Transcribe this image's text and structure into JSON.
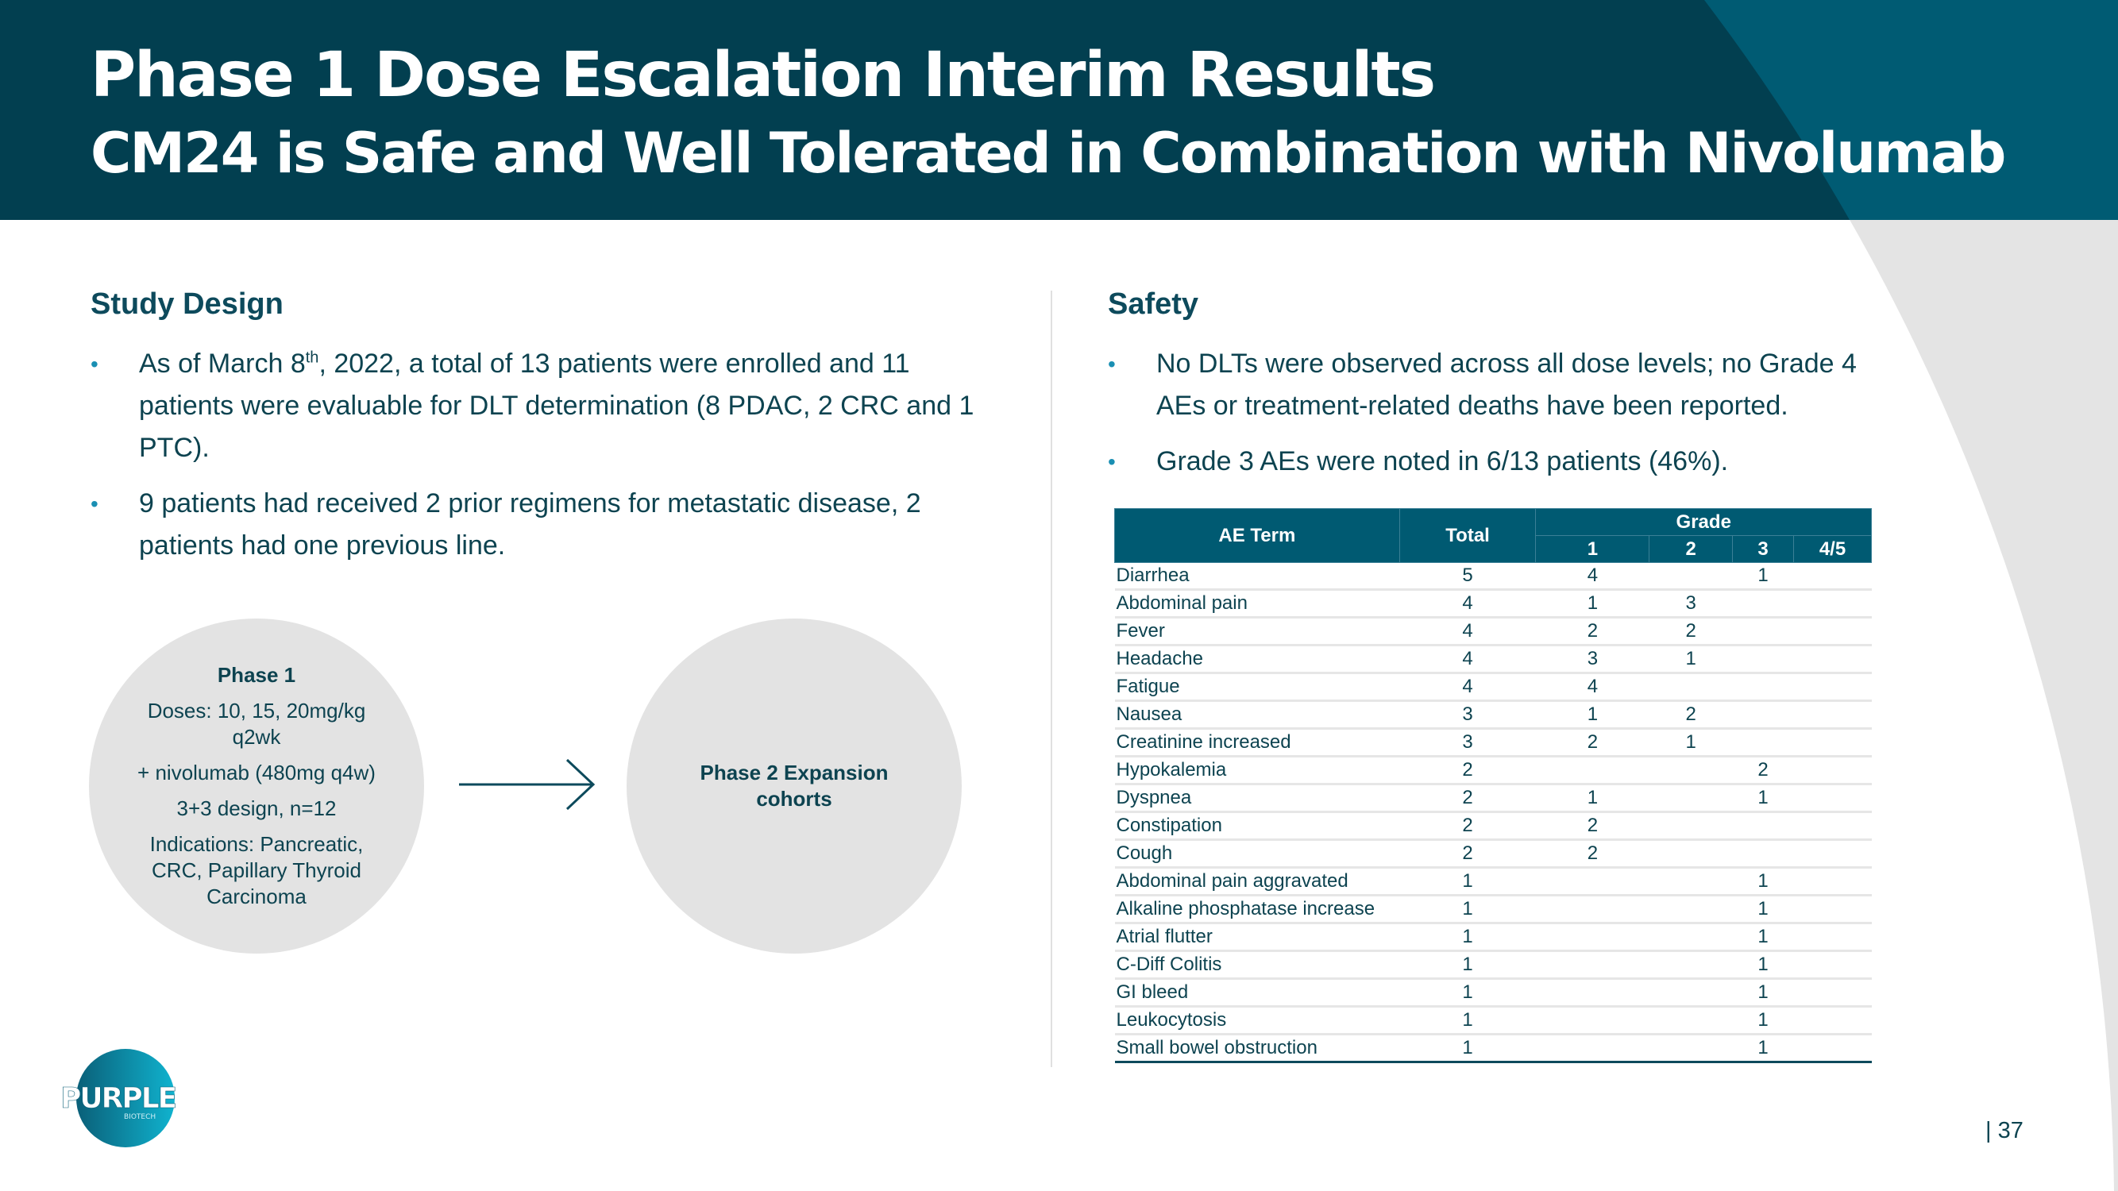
{
  "header": {
    "title": "Phase 1 Dose Escalation Interim Results",
    "subtitle": "CM24 is Safe and Well Tolerated in Combination with Nivolumab"
  },
  "colors": {
    "header_dark": "#023f50",
    "header_light": "#005b73",
    "accent": "#005a72",
    "text": "#0d4350",
    "circle": "#e3e3e3"
  },
  "study_design": {
    "heading": "Study Design",
    "bullets": [
      {
        "pre": "As of March 8",
        "sup": "th",
        "post": ", 2022, a total of 13 patients were enrolled and 11 patients were evaluable for DLT determination (8 PDAC, 2 CRC and 1 PTC)."
      },
      {
        "text": "9 patients had received 2 prior regimens for metastatic disease, 2 patients had one previous line."
      }
    ],
    "phase1": {
      "title": "Phase 1",
      "lines": [
        "Doses: 10, 15, 20mg/kg q2wk",
        "+ nivolumab (480mg q4w)",
        "3+3 design, n=12",
        "Indications: Pancreatic, CRC, Papillary Thyroid Carcinoma"
      ]
    },
    "phase2": {
      "title": "Phase 2 Expansion cohorts"
    },
    "arrow_icon": "arrow-right-icon"
  },
  "safety": {
    "heading": "Safety",
    "bullets": [
      "No DLTs were observed across all dose levels; no Grade 4 AEs or treatment-related deaths have been reported.",
      "Grade 3 AEs were noted in 6/13 patients (46%)."
    ],
    "table": {
      "headers": {
        "term": "AE Term",
        "total": "Total",
        "grade": "Grade",
        "grades": [
          "1",
          "2",
          "3",
          "4/5"
        ]
      },
      "rows": [
        [
          "Diarrhea",
          "5",
          "4",
          "",
          "1",
          ""
        ],
        [
          "Abdominal pain",
          "4",
          "1",
          "3",
          "",
          ""
        ],
        [
          "Fever",
          "4",
          "2",
          "2",
          "",
          ""
        ],
        [
          "Headache",
          "4",
          "3",
          "1",
          "",
          ""
        ],
        [
          "Fatigue",
          "4",
          "4",
          "",
          "",
          ""
        ],
        [
          "Nausea",
          "3",
          "1",
          "2",
          "",
          ""
        ],
        [
          "Creatinine increased",
          "3",
          "2",
          "1",
          "",
          ""
        ],
        [
          "Hypokalemia",
          "2",
          "",
          "",
          "2",
          ""
        ],
        [
          "Dyspnea",
          "2",
          "1",
          "",
          "1",
          ""
        ],
        [
          "Constipation",
          "2",
          "2",
          "",
          "",
          ""
        ],
        [
          "Cough",
          "2",
          "2",
          "",
          "",
          ""
        ],
        [
          "Abdominal pain aggravated",
          "1",
          "",
          "",
          "1",
          ""
        ],
        [
          "Alkaline phosphatase increase",
          "1",
          "",
          "",
          "1",
          ""
        ],
        [
          "Atrial flutter",
          "1",
          "",
          "",
          "1",
          ""
        ],
        [
          "C-Diff Colitis",
          "1",
          "",
          "",
          "1",
          ""
        ],
        [
          "GI bleed",
          "1",
          "",
          "",
          "1",
          ""
        ],
        [
          "Leukocytosis",
          "1",
          "",
          "",
          "1",
          ""
        ],
        [
          "Small bowel obstruction",
          "1",
          "",
          "",
          "1",
          ""
        ]
      ]
    }
  },
  "logo": {
    "name": "PURPLE",
    "sub": "BIOTECH"
  },
  "footer": {
    "page": "| 37"
  }
}
